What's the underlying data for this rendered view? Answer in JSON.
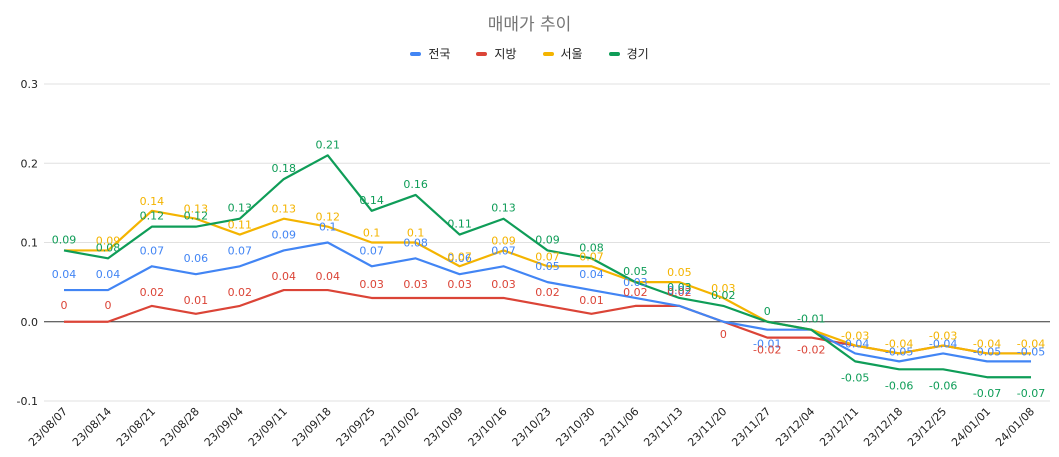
{
  "chart_data": {
    "type": "line",
    "title": "매매가 추이",
    "xlabel": "",
    "ylabel": "",
    "ylim": [
      -0.1,
      0.3
    ],
    "yticks": [
      "0.3",
      "0.2",
      "0.1",
      "0.0",
      "-0.1"
    ],
    "ytick_values": [
      0.3,
      0.2,
      0.1,
      0.0,
      -0.1
    ],
    "grid": true,
    "legend_position": "top",
    "categories": [
      "23/08/07",
      "23/08/14",
      "23/08/21",
      "23/08/28",
      "23/09/04",
      "23/09/11",
      "23/09/18",
      "23/09/25",
      "23/10/02",
      "23/10/09",
      "23/10/16",
      "23/10/23",
      "23/10/30",
      "23/11/06",
      "23/11/13",
      "23/11/20",
      "23/11/27",
      "23/12/04",
      "23/12/11",
      "23/12/18",
      "23/12/25",
      "24/01/01",
      "24/01/08"
    ],
    "series": [
      {
        "name": "전국",
        "color": "#4285f4",
        "values": [
          0.04,
          0.04,
          0.07,
          0.06,
          0.07,
          0.09,
          0.1,
          0.07,
          0.08,
          0.06,
          0.07,
          0.05,
          0.04,
          0.03,
          0.02,
          0,
          -0.01,
          -0.01,
          -0.04,
          -0.05,
          -0.04,
          -0.05,
          -0.05
        ],
        "labels": [
          "0.04",
          "0.04",
          "0.07",
          "0.06",
          "0.07",
          "0.09",
          "0.1",
          "0.07",
          "0.08",
          "0.06",
          "0.07",
          "0.05",
          "0.04",
          "0.03",
          "0.02",
          "",
          "-0.01",
          "",
          "-0.04",
          "-0.05",
          "-0.04",
          "-0.05",
          "-0.05"
        ]
      },
      {
        "name": "지방",
        "color": "#db4437",
        "values": [
          0,
          0,
          0.02,
          0.01,
          0.02,
          0.04,
          0.04,
          0.03,
          0.03,
          0.03,
          0.03,
          0.02,
          0.01,
          0.02,
          0.02,
          0,
          -0.02,
          -0.02,
          -0.03,
          -0.04,
          -0.03,
          -0.04,
          -0.04
        ],
        "labels": [
          "0",
          "0",
          "0.02",
          "0.01",
          "0.02",
          "0.04",
          "0.04",
          "0.03",
          "0.03",
          "0.03",
          "0.03",
          "0.02",
          "0.01",
          "0.02",
          "0.02",
          "0",
          "-0.02",
          "-0.02",
          "",
          "",
          "",
          "",
          ""
        ]
      },
      {
        "name": "서울",
        "color": "#f4b400",
        "values": [
          0.09,
          0.09,
          0.14,
          0.13,
          0.11,
          0.13,
          0.12,
          0.1,
          0.1,
          0.07,
          0.09,
          0.07,
          0.07,
          0.05,
          0.05,
          0.03,
          0,
          -0.01,
          -0.03,
          -0.04,
          -0.03,
          -0.04,
          -0.04
        ],
        "labels": [
          "",
          "0.09",
          "0.14",
          "0.13",
          "0.11",
          "0.13",
          "0.12",
          "0.1",
          "0.1",
          "0.07",
          "0.09",
          "0.07",
          "0.07",
          "",
          "0.05",
          "0.03",
          "",
          "",
          "-0.03",
          "-0.04",
          "-0.03",
          "-0.04",
          "-0.04"
        ]
      },
      {
        "name": "경기",
        "color": "#0f9d58",
        "values": [
          0.09,
          0.08,
          0.12,
          0.12,
          0.13,
          0.18,
          0.21,
          0.14,
          0.16,
          0.11,
          0.13,
          0.09,
          0.08,
          0.05,
          0.03,
          0.02,
          0,
          -0.01,
          -0.05,
          -0.06,
          -0.06,
          -0.07,
          -0.07
        ],
        "labels": [
          "0.09",
          "0.08",
          "0.12",
          "0.12",
          "0.13",
          "0.18",
          "0.21",
          "0.14",
          "0.16",
          "0.11",
          "0.13",
          "0.09",
          "0.08",
          "0.05",
          "0.03",
          "0.02",
          "0",
          "-0.01",
          "-0.05",
          "-0.06",
          "-0.06",
          "-0.07",
          "-0.07"
        ]
      }
    ]
  }
}
